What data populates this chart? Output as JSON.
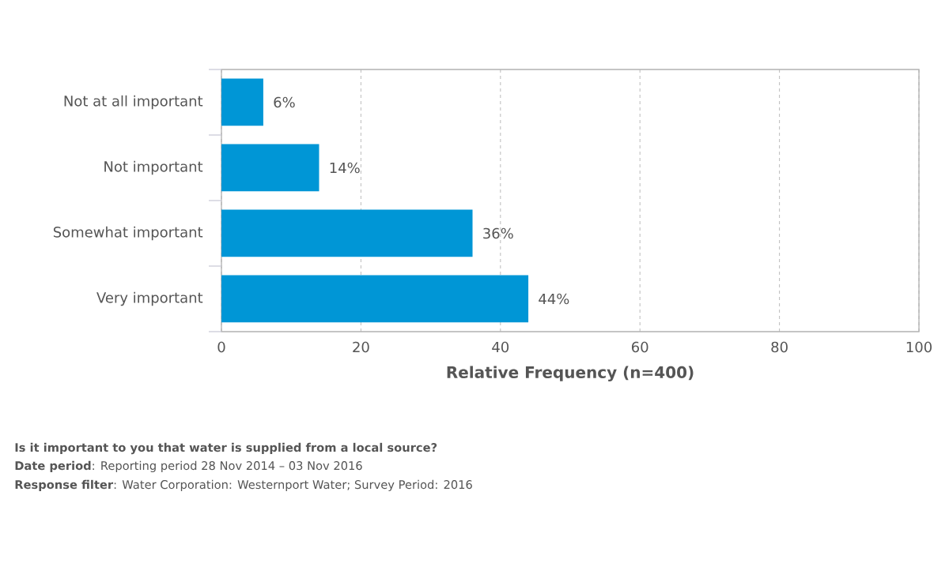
{
  "chart_data": {
    "type": "bar",
    "orientation": "horizontal",
    "categories": [
      "Not at all important",
      "Not important",
      "Somewhat important",
      "Very important"
    ],
    "values": [
      6,
      14,
      36,
      44
    ],
    "value_labels": [
      "6%",
      "14%",
      "36%",
      "44%"
    ],
    "color": "#0096d6",
    "xlim": [
      0,
      100
    ],
    "xticks": [
      0,
      20,
      40,
      60,
      80,
      100
    ],
    "xlabel": "Relative Frequency (n=400)",
    "grid": "x",
    "annotations": [
      "Is it important to you that water is supplied from a local source?",
      "**Date period**: Reporting period 28 Nov 2014 – 03 Nov 2016",
      "**Response filter**: Water Corporation: Westernport Water; Survey Period: 2016"
    ]
  }
}
